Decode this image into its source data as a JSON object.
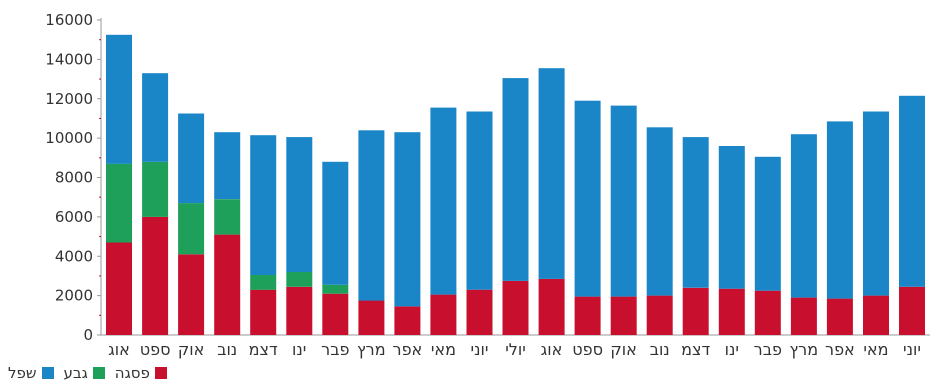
{
  "chart_data": {
    "type": "bar",
    "stacked": true,
    "categories": [
      "אוג",
      "ספט",
      "אוק",
      "נוב",
      "דצמ",
      "ינו",
      "פבר",
      "מרץ",
      "אפר",
      "מאי",
      "יוני",
      "יולי",
      "אוג",
      "ספט",
      "אוק",
      "נוב",
      "דצמ",
      "ינו",
      "פבר",
      "מרץ",
      "אפר",
      "מאי",
      "יוני"
    ],
    "series": [
      {
        "name": "פסגה",
        "color": "#c8102e",
        "values": [
          4700,
          6000,
          4100,
          5100,
          2300,
          2450,
          2100,
          1750,
          1450,
          2050,
          2300,
          2750,
          2850,
          1950,
          1950,
          2000,
          2400,
          2350,
          2250,
          1900,
          1850,
          2000,
          2450
        ]
      },
      {
        "name": "גבע",
        "color": "#1fa05a",
        "values": [
          4000,
          2800,
          2600,
          1800,
          750,
          750,
          450,
          0,
          0,
          0,
          0,
          0,
          0,
          0,
          0,
          0,
          0,
          0,
          0,
          0,
          0,
          0,
          0
        ]
      },
      {
        "name": "שפל",
        "color": "#1a86c8",
        "values": [
          6550,
          4500,
          4550,
          3400,
          7100,
          6850,
          6250,
          8650,
          8850,
          9500,
          9050,
          10300,
          10700,
          9950,
          9700,
          8550,
          7650,
          7250,
          6800,
          8300,
          9000,
          9350,
          9700
        ]
      }
    ],
    "ylim": [
      0,
      16000
    ],
    "yticks": [
      0,
      2000,
      4000,
      6000,
      8000,
      10000,
      12000,
      14000,
      16000
    ],
    "legend_position": "bottom-left",
    "grid": false
  }
}
